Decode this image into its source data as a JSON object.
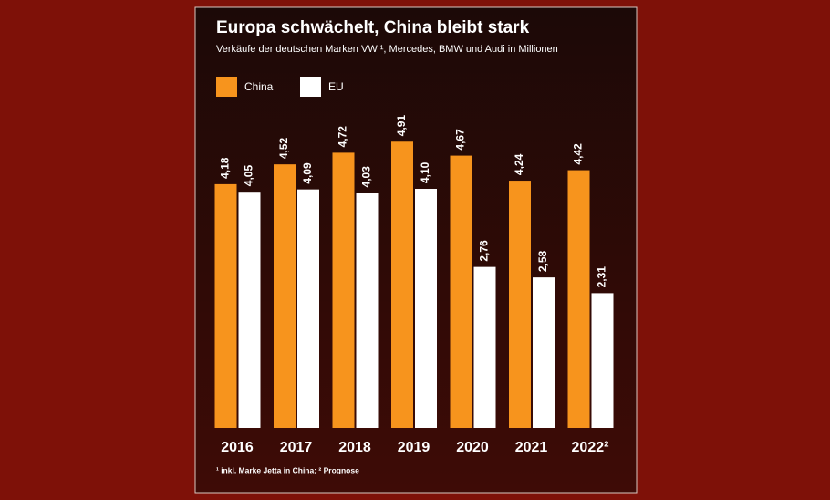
{
  "chart_data": {
    "type": "bar",
    "title": "Europa schwächelt, China bleibt stark",
    "subtitle": "Verkäufe der deutschen Marken VW ¹, Mercedes, BMW und Audi in Millionen",
    "categories": [
      "2016",
      "2017",
      "2018",
      "2019",
      "2020",
      "2021",
      "2022²"
    ],
    "series": [
      {
        "name": "China",
        "color": "#f7941d",
        "values": [
          4.18,
          4.52,
          4.72,
          4.91,
          4.67,
          4.24,
          4.42
        ],
        "value_labels": [
          "4,18",
          "4,52",
          "4,72",
          "4,91",
          "4,67",
          "4,24",
          "4,42"
        ]
      },
      {
        "name": "EU",
        "color": "#ffffff",
        "values": [
          4.05,
          4.09,
          4.03,
          4.1,
          2.76,
          2.58,
          2.31
        ],
        "value_labels": [
          "4,05",
          "4,09",
          "4,03",
          "4,10",
          "2,76",
          "2,58",
          "2,31"
        ]
      }
    ],
    "footnote": "¹ inkl. Marke Jetta in China; ² Prognose"
  }
}
